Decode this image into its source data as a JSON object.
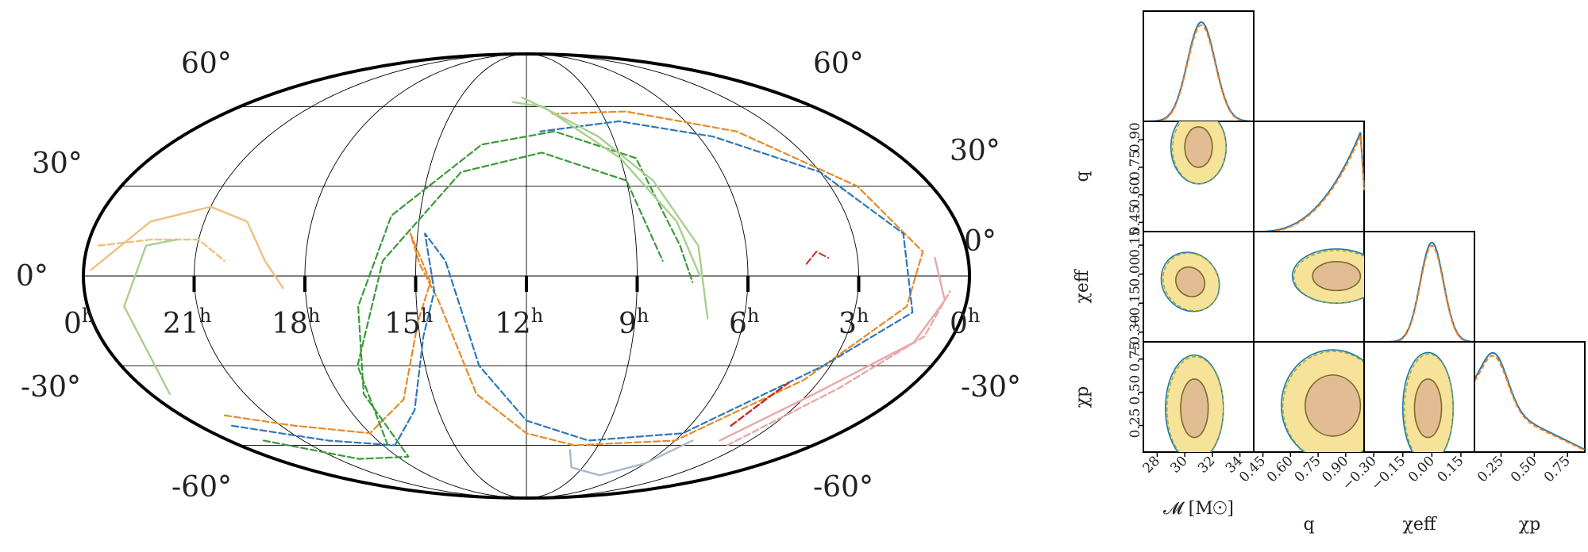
{
  "chart_data": [
    {
      "type": "sky-map",
      "projection": "mollweide",
      "ra_tick_labels": [
        "0",
        "21",
        "18",
        "15",
        "12",
        "9",
        "6",
        "3",
        "0"
      ],
      "ra_unit": "h",
      "dec_tick_labels": [
        "60°",
        "30°",
        "0°",
        "-30°",
        "-60°"
      ],
      "grid": true,
      "contours": [
        {
          "color": "#f0c080",
          "style": "solid+dashed",
          "ra_hours": [
            23.5,
            19.0
          ],
          "dec_deg": [
            5,
            35
          ]
        },
        {
          "color": "#a8d08d",
          "style": "solid",
          "ra_hours": [
            23.0,
            20.5
          ],
          "dec_deg": [
            -40,
            15
          ]
        },
        {
          "color": "#e58b26",
          "style": "solid+dashed",
          "ra_hours": [
            21.5,
            1.5
          ],
          "dec_deg": [
            -55,
            55
          ]
        },
        {
          "color": "#2e78b8",
          "style": "solid+dashed",
          "ra_hours": [
            21.5,
            1.5
          ],
          "dec_deg": [
            -60,
            50
          ]
        },
        {
          "color": "#3a9a3a",
          "style": "dashed",
          "ra_hours": [
            21.5,
            6.5
          ],
          "dec_deg": [
            -70,
            45
          ]
        },
        {
          "color": "#a8d08d",
          "style": "solid",
          "ra_hours": [
            12.5,
            7.5
          ],
          "dec_deg": [
            -30,
            65
          ]
        },
        {
          "color": "#aab8c8",
          "style": "solid",
          "ra_hours": [
            10.0,
            6.0
          ],
          "dec_deg": [
            -70,
            -55
          ]
        },
        {
          "color": "#e8a8a8",
          "style": "solid",
          "ra_hours": [
            4.0,
            0.5
          ],
          "dec_deg": [
            -60,
            -10
          ]
        },
        {
          "color": "#c82828",
          "style": "dashed",
          "ra_hours": [
            4.5,
            3.9
          ],
          "dec_deg": [
            -50,
            -38
          ]
        }
      ]
    },
    {
      "type": "corner",
      "parameters": [
        "M",
        "q",
        "chi_eff",
        "chi_p"
      ],
      "axis_labels": {
        "x": [
          "𝓜 [M☉]",
          "q",
          "χeff",
          "χp"
        ],
        "y": [
          "",
          "q",
          "χeff",
          "χp"
        ]
      },
      "ranges": {
        "M": [
          27,
          35
        ],
        "q": [
          0.4,
          1.0
        ],
        "chi_eff": [
          -0.35,
          0.22
        ],
        "chi_p": [
          0.05,
          0.88
        ]
      },
      "tick_labels": {
        "M": [
          "28",
          "30",
          "32",
          "34"
        ],
        "q": [
          "0.45",
          "0.60",
          "0.75",
          "0.90"
        ],
        "chi_eff": [
          "−0.30",
          "−0.15",
          "0.00",
          "0.15"
        ],
        "chi_p": [
          "0.25",
          "0.50",
          "0.75"
        ]
      },
      "series": [
        {
          "style": "solid",
          "color": "#1f77b4"
        },
        {
          "style": "dashed",
          "color": "#ff7f0e"
        }
      ],
      "marginals": {
        "M": {
          "mean": 31.2,
          "sd": 1.0
        },
        "q": {
          "shape": "rising",
          "peak": 0.95
        },
        "chi_eff": {
          "mean": 0.0,
          "sd": 0.06
        },
        "chi_p": {
          "shape": "falling",
          "peak": 0.2
        }
      },
      "credible_region_colors": {
        "outer": "#f7e29a",
        "inner": "#e2bc93",
        "edge": "#7a6a2a"
      }
    }
  ]
}
